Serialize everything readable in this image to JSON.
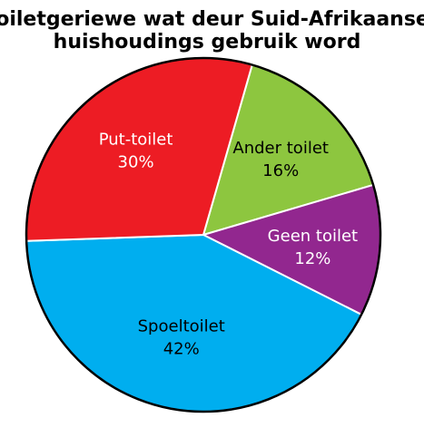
{
  "chart_data": {
    "type": "pie",
    "title": "Toiletgeriewe wat deur Suid-Afrikaanse huishoudings gebruik word",
    "title_lines": [
      "Toiletgeriewe wat deur Suid-Afrikaanse",
      "huishoudings gebruik word"
    ],
    "categories": [
      "Ander toilet",
      "Geen toilet",
      "Spoeltoilet",
      "Put-toilet"
    ],
    "values": [
      16,
      12,
      42,
      30
    ],
    "value_labels": [
      "16%",
      "12%",
      "42%",
      "30%"
    ],
    "colors": [
      "#8dc63f",
      "#92278f",
      "#00aeef",
      "#ed1c24"
    ],
    "label_colors": [
      "#000000",
      "#ffffff",
      "#000000",
      "#ffffff"
    ],
    "slice_border_color": "#ffffff",
    "outline_color": "#000000",
    "legend": "none"
  }
}
